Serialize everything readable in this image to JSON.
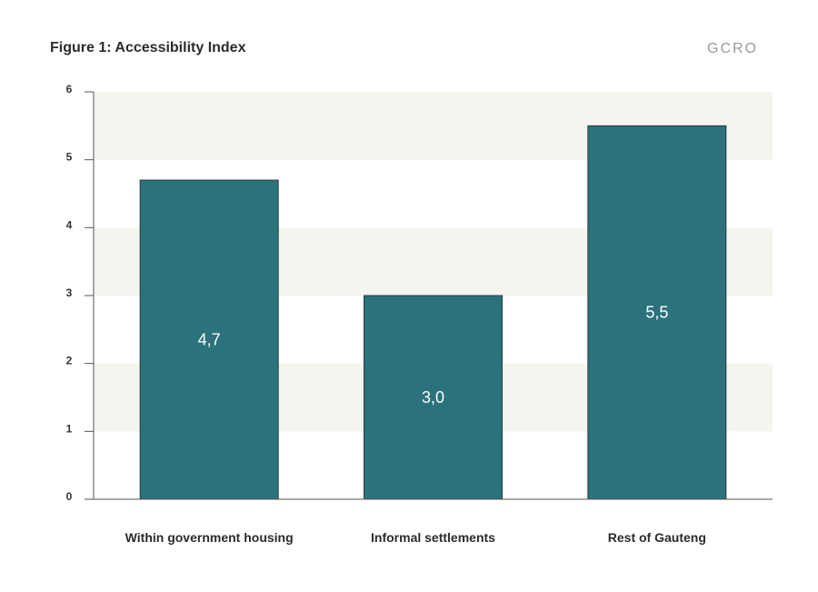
{
  "header": {
    "title": "Figure 1: Accessibility Index",
    "logo_text": "GCRO"
  },
  "chart_data": {
    "type": "bar",
    "title": "Figure 1: Accessibility Index",
    "categories": [
      "Within government housing",
      "Informal settlements",
      "Rest of Gauteng"
    ],
    "values": [
      4.7,
      3.0,
      5.5
    ],
    "data_labels": [
      "4,7",
      "3,0",
      "5,5"
    ],
    "xlabel": "",
    "ylabel": "",
    "ylim": [
      0,
      6
    ],
    "yticks": [
      0,
      1,
      2,
      3,
      4,
      5,
      6
    ],
    "bar_color": "#2b727c",
    "band_color": "#f6f4ef",
    "grid": false,
    "legend": "none"
  }
}
